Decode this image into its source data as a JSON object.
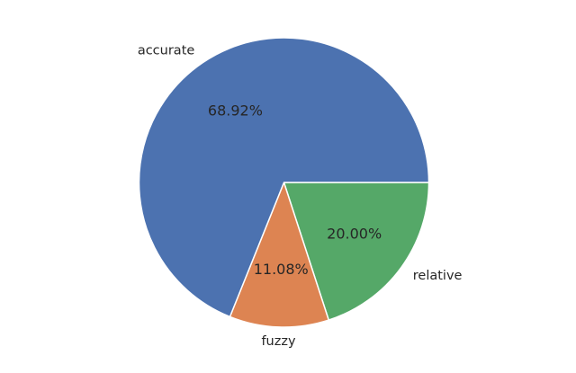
{
  "chart_data": {
    "type": "pie",
    "categories": [
      "relative",
      "fuzzy",
      "accurate"
    ],
    "values": [
      20.0,
      11.08,
      68.92
    ],
    "percent_labels": [
      "20.00%",
      "11.08%",
      "68.92%"
    ],
    "colors": [
      "#55a868",
      "#dd8452",
      "#4c72b0"
    ],
    "start_angle_deg": 0,
    "direction": "clockwise-on-screen"
  }
}
